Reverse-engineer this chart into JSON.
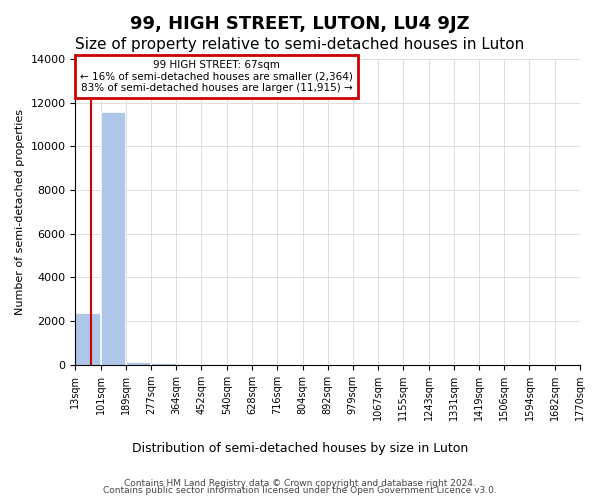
{
  "title": "99, HIGH STREET, LUTON, LU4 9JZ",
  "subtitle": "Size of property relative to semi-detached houses in Luton",
  "xlabel_dist": "Distribution of semi-detached houses by size in Luton",
  "ylabel": "Number of semi-detached properties",
  "annotation_line1": "99 HIGH STREET: 67sqm",
  "annotation_line2": "← 16% of semi-detached houses are smaller (2,364)",
  "annotation_line3": "83% of semi-detached houses are larger (11,915) →",
  "footer1": "Contains HM Land Registry data © Crown copyright and database right 2024.",
  "footer2": "Contains public sector information licensed under the Open Government Licence v3.0.",
  "bin_edges": [
    13,
    101,
    189,
    277,
    364,
    452,
    540,
    628,
    716,
    804,
    892,
    979,
    1067,
    1155,
    1243,
    1331,
    1419,
    1506,
    1594,
    1682,
    1770
  ],
  "bar_heights": [
    2364,
    11551,
    135,
    77,
    48,
    23,
    28,
    16,
    8,
    5,
    7,
    5,
    3,
    5,
    5,
    5,
    3,
    3,
    0,
    3
  ],
  "bar_color": "#aec6e8",
  "property_sqm": 67,
  "ylim": [
    0,
    14000
  ],
  "yticks": [
    0,
    2000,
    4000,
    6000,
    8000,
    10000,
    12000,
    14000
  ],
  "annotation_box_color": "#cc0000",
  "vline_color": "#cc0000",
  "grid_color": "#dddddd",
  "title_fontsize": 13,
  "subtitle_fontsize": 11,
  "footer_fontsize": 6.5,
  "ylabel_fontsize": 8,
  "tick_fontsize": 7,
  "annot_fontsize": 7.5,
  "xlabel_dist_fontsize": 9
}
